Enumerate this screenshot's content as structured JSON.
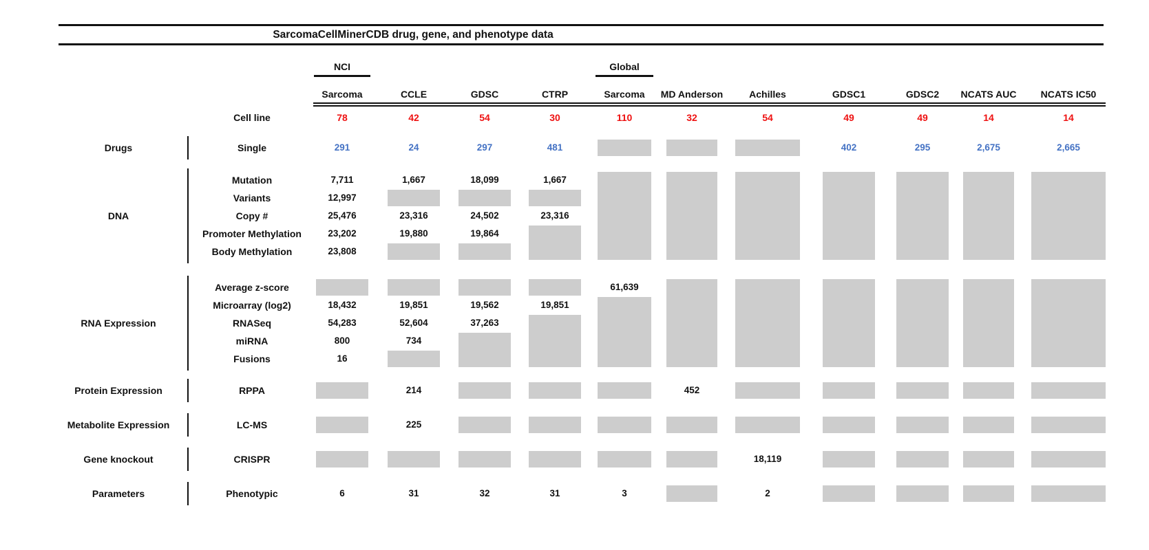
{
  "colors": {
    "count_red": "#ee1111",
    "value_blue": "#4472c4",
    "no_data_gray": "#cdcdcd",
    "ink": "#111111",
    "background": "#ffffff"
  },
  "chart_data": {
    "type": "table",
    "title": "SarcomaCellMinerCDB drug, gene, and phenotype data",
    "row_header_label": "Cell line",
    "no_data_marker": "gray",
    "columns": [
      {
        "id": "nci-sarcoma",
        "top_label": "NCI",
        "label": "Sarcoma",
        "cell_line_count": "78"
      },
      {
        "id": "ccle",
        "label": "CCLE",
        "cell_line_count": "42"
      },
      {
        "id": "gdsc",
        "label": "GDSC",
        "cell_line_count": "54"
      },
      {
        "id": "ctrp",
        "label": "CTRP",
        "cell_line_count": "30"
      },
      {
        "id": "global-sarcoma",
        "top_label": "Global",
        "label": "Sarcoma",
        "cell_line_count": "110"
      },
      {
        "id": "md-anderson",
        "label": "MD Anderson",
        "cell_line_count": "32"
      },
      {
        "id": "achilles",
        "label": "Achilles",
        "cell_line_count": "54"
      },
      {
        "id": "gdsc1",
        "label": "GDSC1",
        "cell_line_count": "49"
      },
      {
        "id": "gdsc2",
        "label": "GDSC2",
        "cell_line_count": "49"
      },
      {
        "id": "ncats-auc",
        "label": "NCATS AUC",
        "cell_line_count": "14"
      },
      {
        "id": "ncats-ic50",
        "label": "NCATS IC50",
        "cell_line_count": "14"
      }
    ],
    "sections": [
      {
        "id": "drugs",
        "category": "Drugs",
        "rows": [
          {
            "label": "Single",
            "color": "blue",
            "values": [
              "291",
              "24",
              "297",
              "481",
              "gray",
              "gray",
              "gray",
              "402",
              "295",
              "2,675",
              "2,665"
            ]
          }
        ]
      },
      {
        "id": "dna",
        "category": "DNA",
        "rows": [
          {
            "label": "Mutation",
            "values": [
              "7,711",
              "1,667",
              "18,099",
              "1,667",
              "gray",
              "gray",
              "gray",
              "gray",
              "gray",
              "gray",
              "gray"
            ]
          },
          {
            "label": "Variants",
            "values": [
              "12,997",
              "gray",
              "gray",
              "gray",
              "gray",
              "gray",
              "gray",
              "gray",
              "gray",
              "gray",
              "gray"
            ]
          },
          {
            "label": "Copy #",
            "values": [
              "25,476",
              "23,316",
              "24,502",
              "23,316",
              "gray",
              "gray",
              "gray",
              "gray",
              "gray",
              "gray",
              "gray"
            ]
          },
          {
            "label": "Promoter Methylation",
            "values": [
              "23,202",
              "19,880",
              "19,864",
              "gray",
              "gray",
              "gray",
              "gray",
              "gray",
              "gray",
              "gray",
              "gray"
            ]
          },
          {
            "label": "Body Methylation",
            "values": [
              "23,808",
              "gray",
              "gray",
              "gray",
              "gray",
              "gray",
              "gray",
              "gray",
              "gray",
              "gray",
              "gray"
            ]
          }
        ]
      },
      {
        "id": "rna",
        "category": "RNA Expression",
        "rows": [
          {
            "label": "Average z-score",
            "values": [
              "gray",
              "gray",
              "gray",
              "gray",
              "61,639",
              "gray",
              "gray",
              "gray",
              "gray",
              "gray",
              "gray"
            ]
          },
          {
            "label": "Microarray (log2)",
            "values": [
              "18,432",
              "19,851",
              "19,562",
              "19,851",
              "gray",
              "gray",
              "gray",
              "gray",
              "gray",
              "gray",
              "gray"
            ]
          },
          {
            "label": "RNASeq",
            "values": [
              "54,283",
              "52,604",
              "37,263",
              "gray",
              "gray",
              "gray",
              "gray",
              "gray",
              "gray",
              "gray",
              "gray"
            ]
          },
          {
            "label": "miRNA",
            "values": [
              "800",
              "734",
              "gray",
              "gray",
              "gray",
              "gray",
              "gray",
              "gray",
              "gray",
              "gray",
              "gray"
            ]
          },
          {
            "label": "Fusions",
            "values": [
              "16",
              "gray",
              "gray",
              "gray",
              "gray",
              "gray",
              "gray",
              "gray",
              "gray",
              "gray",
              "gray"
            ]
          }
        ]
      },
      {
        "id": "protein",
        "category": "Protein Expression",
        "rows": [
          {
            "label": "RPPA",
            "values": [
              "gray",
              "214",
              "gray",
              "gray",
              "gray",
              "452",
              "gray",
              "gray",
              "gray",
              "gray",
              "gray"
            ]
          }
        ]
      },
      {
        "id": "metabolite",
        "category": "Metabolite Expression",
        "rows": [
          {
            "label": "LC-MS",
            "values": [
              "gray",
              "225",
              "gray",
              "gray",
              "gray",
              "gray",
              "gray",
              "gray",
              "gray",
              "gray",
              "gray"
            ]
          }
        ]
      },
      {
        "id": "knockout",
        "category": "Gene knockout",
        "rows": [
          {
            "label": "CRISPR",
            "values": [
              "gray",
              "gray",
              "gray",
              "gray",
              "gray",
              "gray",
              "18,119",
              "gray",
              "gray",
              "gray",
              "gray"
            ]
          }
        ]
      },
      {
        "id": "parameters",
        "category": "Parameters",
        "rows": [
          {
            "label": "Phenotypic",
            "values": [
              "6",
              "31",
              "32",
              "31",
              "3",
              "gray",
              "2",
              "gray",
              "gray",
              "gray",
              "gray"
            ]
          }
        ]
      }
    ]
  }
}
